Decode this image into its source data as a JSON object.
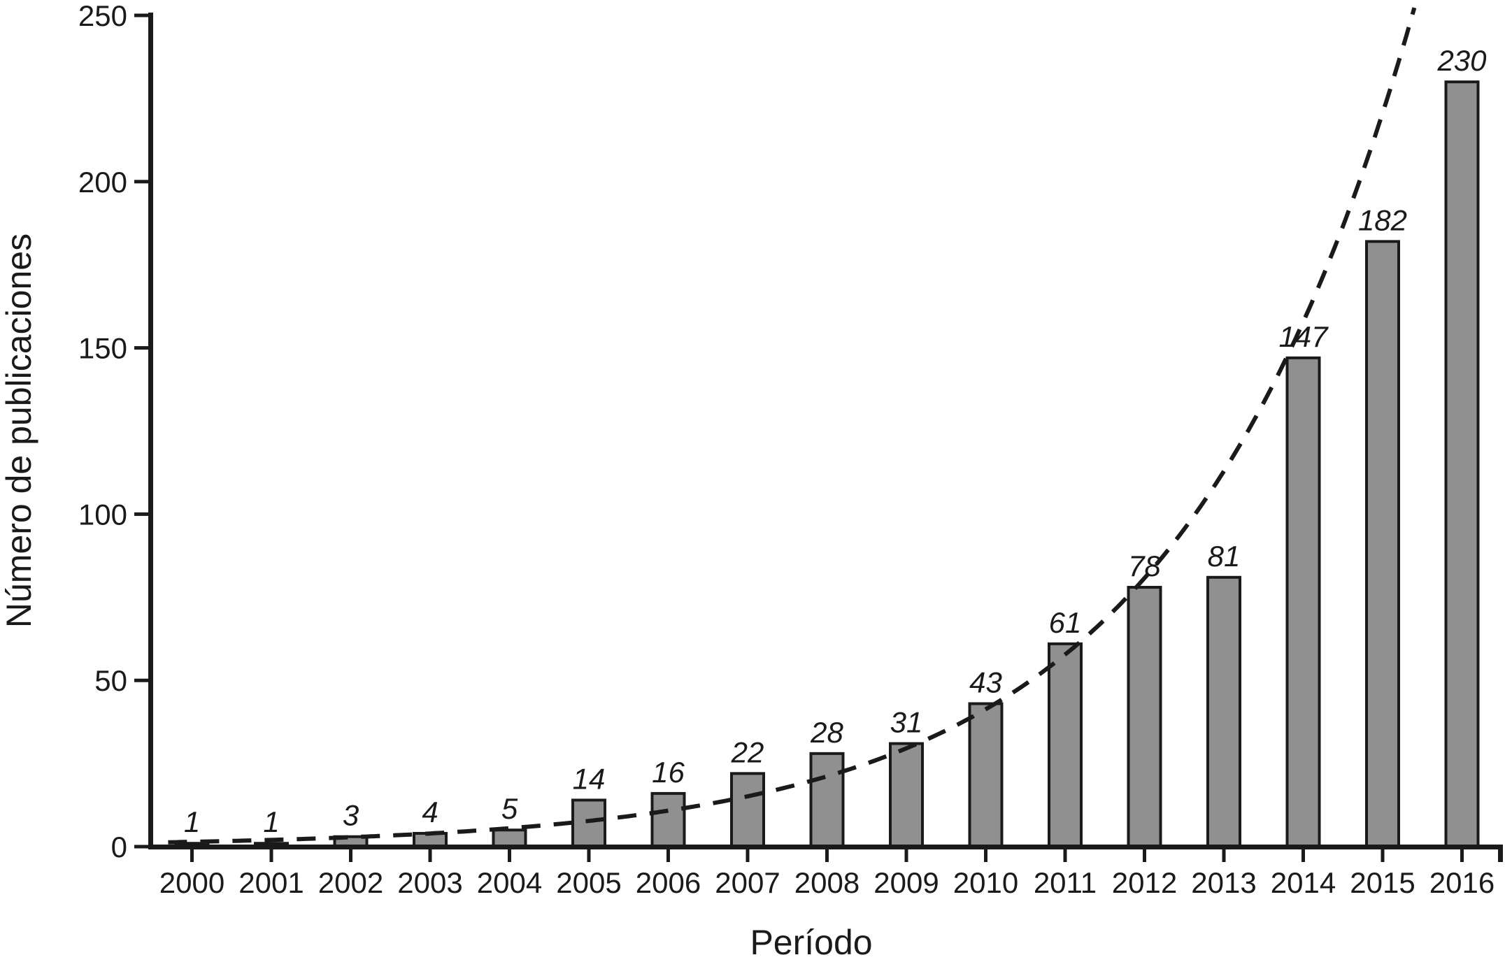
{
  "chart_data": {
    "type": "bar",
    "title": "",
    "xlabel": "Período",
    "ylabel": "Número de publicaciones",
    "categories": [
      "2000",
      "2001",
      "2002",
      "2003",
      "2004",
      "2005",
      "2006",
      "2007",
      "2008",
      "2009",
      "2010",
      "2011",
      "2012",
      "2013",
      "2014",
      "2015",
      "2016"
    ],
    "values": [
      1,
      1,
      3,
      4,
      5,
      14,
      16,
      22,
      28,
      31,
      43,
      61,
      78,
      81,
      147,
      182,
      230
    ],
    "bar_labels": [
      "1",
      "1",
      "3",
      "4",
      "5",
      "14",
      "16",
      "22",
      "28",
      "31",
      "43",
      "61",
      "78",
      "81",
      "147",
      "182",
      "230"
    ],
    "ylim": [
      0,
      250
    ],
    "yticks": [
      0,
      50,
      100,
      150,
      200,
      250
    ],
    "ytick_labels": [
      "0",
      "50",
      "100",
      "150",
      "200",
      "250"
    ],
    "grid": false,
    "legend": null,
    "trend": {
      "style": "dashed",
      "type": "exponential",
      "A": 1.45,
      "b": 0.335,
      "k_start": -0.3,
      "v_max": 253
    },
    "colors": {
      "background": "#ffffff",
      "bar_fill": "#909090",
      "bar_border": "#1a1a1a",
      "axis": "#1a1a1a",
      "text": "#1a1a1a",
      "trend_line": "#1a1a1a"
    }
  }
}
